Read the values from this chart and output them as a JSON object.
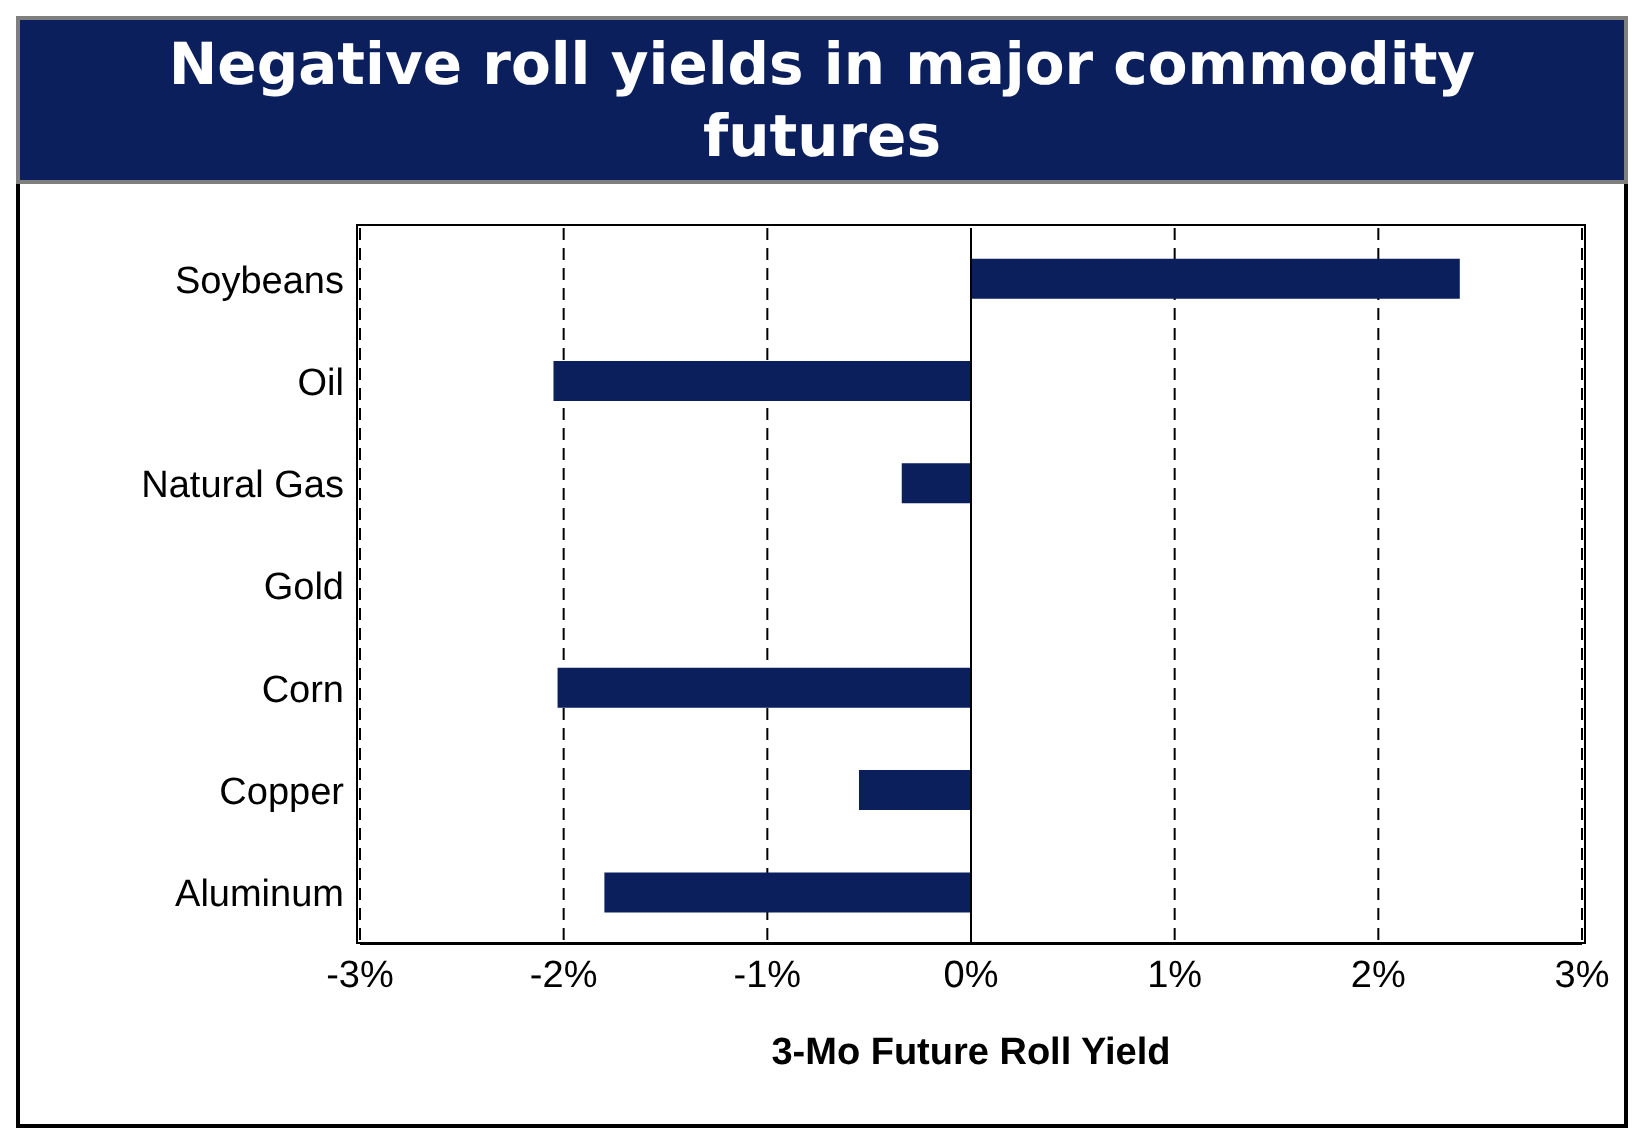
{
  "chart_data": {
    "type": "bar",
    "orientation": "horizontal",
    "title": "Negative roll yields in major commodity futures",
    "xlabel": "3-Mo Future Roll Yield",
    "categories": [
      "Soybeans",
      "Oil",
      "Natural Gas",
      "Gold",
      "Corn",
      "Copper",
      "Aluminum"
    ],
    "values": [
      2.4,
      -2.05,
      -0.34,
      0,
      -2.03,
      -0.55,
      -1.8
    ],
    "color": "#0a1f5c",
    "xlim": [
      -3,
      3
    ],
    "xticks": [
      {
        "value": -3,
        "label": "-3%"
      },
      {
        "value": -2,
        "label": "-2%"
      },
      {
        "value": -1,
        "label": "-1%"
      },
      {
        "value": 0,
        "label": "0%"
      },
      {
        "value": 1,
        "label": "1%"
      },
      {
        "value": 2,
        "label": "2%"
      },
      {
        "value": 3,
        "label": "3%"
      }
    ],
    "grid": "x"
  }
}
